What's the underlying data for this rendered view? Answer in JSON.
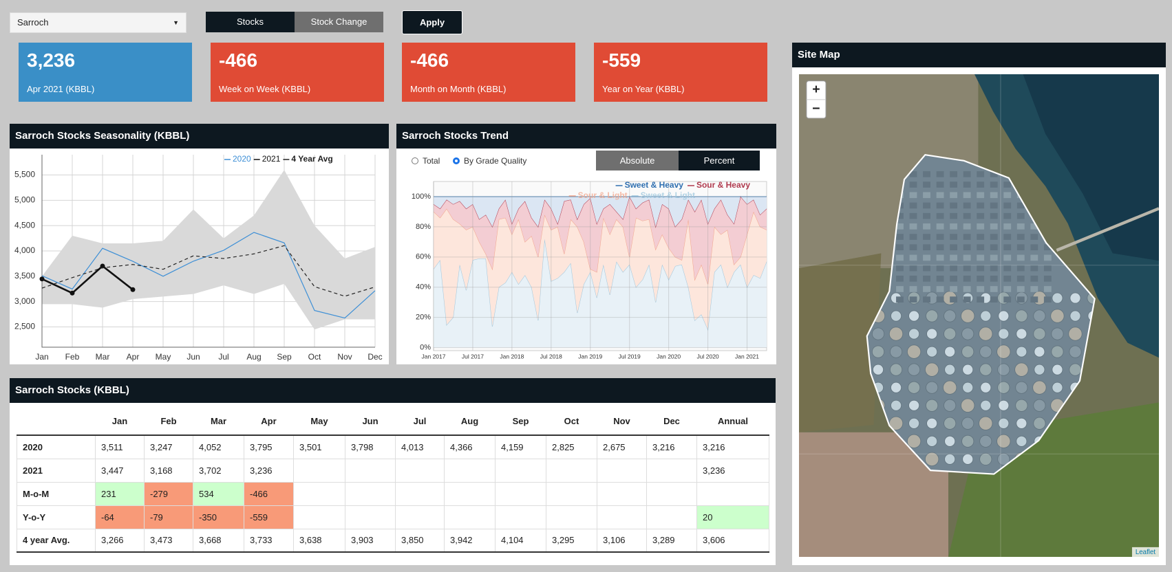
{
  "controls": {
    "site": "Sarroch",
    "modes": [
      "Stocks",
      "Stock Change"
    ],
    "apply": "Apply"
  },
  "kpis": [
    {
      "value": "3,236",
      "label": "Apr 2021 (KBBL)",
      "color": "#3a8fc7",
      "icon": "chart"
    },
    {
      "value": "-466",
      "label": "Week on Week (KBBL)",
      "color": "#e04b35",
      "icon": "arrow-down"
    },
    {
      "value": "-466",
      "label": "Month on Month (KBBL)",
      "color": "#e04b35",
      "icon": "arrow-down"
    },
    {
      "value": "-559",
      "label": "Year on Year (KBBL)",
      "color": "#e04b35",
      "icon": "arrow-down"
    }
  ],
  "chart_data": [
    {
      "type": "line",
      "title": "Sarroch Stocks Seasonality (KBBL)",
      "categories": [
        "Jan",
        "Feb",
        "Mar",
        "Apr",
        "May",
        "Jun",
        "Jul",
        "Aug",
        "Sep",
        "Oct",
        "Nov",
        "Dec"
      ],
      "series": [
        {
          "name": "2020",
          "color": "#3d8fd6",
          "width": 1.2,
          "values": [
            3511,
            3247,
            4052,
            3795,
            3501,
            3798,
            4013,
            4366,
            4159,
            2825,
            2675,
            3216
          ]
        },
        {
          "name": "2021",
          "color": "#111111",
          "width": 2.6,
          "markers": true,
          "values": [
            3447,
            3168,
            3702,
            3236,
            null,
            null,
            null,
            null,
            null,
            null,
            null,
            null
          ]
        },
        {
          "name": "4 Year Avg",
          "color": "#222222",
          "width": 1.2,
          "dash": true,
          "values": [
            3266,
            3473,
            3668,
            3733,
            3638,
            3903,
            3850,
            3942,
            4104,
            3295,
            3106,
            3289
          ]
        }
      ],
      "band": {
        "color": "#d9d9d9",
        "low": [
          2950,
          2950,
          2880,
          3050,
          3100,
          3150,
          3320,
          3150,
          3350,
          2450,
          2650,
          2650
        ],
        "high": [
          3500,
          4300,
          4150,
          4150,
          4200,
          4820,
          4250,
          4700,
          5600,
          4500,
          3850,
          4080
        ]
      },
      "ylim": [
        2100,
        5900
      ],
      "yticks": [
        {
          "value": 2500,
          "label": "2,500"
        },
        {
          "value": 3000,
          "label": "3,000"
        },
        {
          "value": 3500,
          "label": "3,500"
        },
        {
          "value": 4000,
          "label": "4,000"
        },
        {
          "value": 4500,
          "label": "4,500"
        },
        {
          "value": 5000,
          "label": "5,000"
        },
        {
          "value": 5500,
          "label": "5,500"
        }
      ],
      "grid": true,
      "legend": "top-right"
    },
    {
      "type": "area",
      "title": "Sarroch Stocks Trend",
      "stacked": true,
      "controls": {
        "modes": [
          "Total",
          "By Grade Quality"
        ],
        "selected": 1,
        "units": [
          "Absolute",
          "Percent"
        ],
        "active": 1
      },
      "categories": [
        "Jan 2017",
        null,
        null,
        null,
        null,
        null,
        "Jul 2017",
        null,
        null,
        null,
        null,
        null,
        "Jan 2018",
        null,
        null,
        null,
        null,
        null,
        "Jul 2018",
        null,
        null,
        null,
        null,
        null,
        "Jan 2019",
        null,
        null,
        null,
        null,
        null,
        "Jul 2019",
        null,
        null,
        null,
        null,
        null,
        "Jan 2020",
        null,
        null,
        null,
        null,
        null,
        "Jul 2020",
        null,
        null,
        null,
        null,
        null,
        "Jan 2021",
        null,
        null,
        null
      ],
      "series": [
        {
          "name": "Sweet & Heavy",
          "color": "#2f6fb0",
          "fill": "#dbe6f3",
          "values": [
            5,
            8,
            2,
            5,
            3,
            8,
            5,
            15,
            12,
            20,
            8,
            2,
            18,
            8,
            3,
            14,
            20,
            2,
            8,
            18,
            3,
            2,
            15,
            5,
            1,
            18,
            8,
            5,
            10,
            15,
            0,
            8,
            4,
            2,
            20,
            5,
            8,
            20,
            15,
            2,
            10,
            2,
            18,
            8,
            2,
            12,
            18,
            0,
            5,
            2,
            12,
            8
          ]
        },
        {
          "name": "Sour & Heavy",
          "color": "#b03a4e",
          "fill": "#f3cdd3",
          "values": [
            5,
            6,
            6,
            10,
            15,
            14,
            15,
            15,
            26,
            28,
            7,
            12,
            7,
            7,
            27,
            12,
            20,
            10,
            14,
            2,
            35,
            13,
            5,
            25,
            47,
            32,
            6,
            20,
            5,
            5,
            40,
            6,
            12,
            13,
            15,
            20,
            26,
            20,
            27,
            13,
            45,
            43,
            40,
            12,
            23,
            10,
            27,
            40,
            20,
            8,
            8,
            14
          ]
        },
        {
          "name": "Sour & Light",
          "color": "#f2a58a",
          "fill": "#fde6dc",
          "values": [
            38,
            28,
            77,
            65,
            27,
            40,
            22,
            11,
            3,
            38,
            45,
            43,
            25,
            43,
            22,
            34,
            42,
            16,
            34,
            34,
            12,
            29,
            57,
            28,
            2,
            17,
            31,
            40,
            28,
            30,
            5,
            46,
            39,
            30,
            35,
            20,
            21,
            6,
            3,
            45,
            27,
            33,
            30,
            30,
            20,
            38,
            5,
            5,
            35,
            42,
            34,
            21
          ]
        },
        {
          "name": "Sweet & Light",
          "color": "#9cc6dd",
          "fill": "#e8f1f7",
          "values": [
            52,
            58,
            15,
            20,
            55,
            38,
            58,
            59,
            59,
            14,
            40,
            43,
            50,
            42,
            48,
            40,
            18,
            72,
            44,
            46,
            50,
            56,
            23,
            42,
            50,
            33,
            55,
            35,
            57,
            50,
            55,
            40,
            45,
            55,
            30,
            55,
            45,
            54,
            55,
            40,
            18,
            22,
            12,
            50,
            55,
            40,
            50,
            55,
            40,
            48,
            46,
            57
          ]
        }
      ],
      "ylim": [
        -2,
        110
      ],
      "yticks": [
        {
          "value": 0,
          "label": "0%"
        },
        {
          "value": 20,
          "label": "20%"
        },
        {
          "value": 40,
          "label": "40%"
        },
        {
          "value": 60,
          "label": "60%"
        },
        {
          "value": 80,
          "label": "80%"
        },
        {
          "value": 100,
          "label": "100%"
        }
      ],
      "grid": true,
      "legend": "top-right"
    }
  ],
  "table": {
    "title": "Sarroch Stocks (KBBL)",
    "header": [
      "Jan",
      "Feb",
      "Mar",
      "Apr",
      "May",
      "Jun",
      "Jul",
      "Aug",
      "Sep",
      "Oct",
      "Nov",
      "Dec",
      "Annual"
    ],
    "rows": [
      {
        "label": "2020",
        "cells": [
          "3,511",
          "3,247",
          "4,052",
          "3,795",
          "3,501",
          "3,798",
          "4,013",
          "4,366",
          "4,159",
          "2,825",
          "2,675",
          "3,216",
          "3,216"
        ]
      },
      {
        "label": "2021",
        "cells": [
          "3,447",
          "3,168",
          "3,702",
          "3,236",
          null,
          null,
          null,
          null,
          null,
          null,
          null,
          null,
          "3,236"
        ]
      },
      {
        "label": "M-o-M",
        "colored": true,
        "cells": [
          "231",
          "-279",
          "534",
          "-466",
          null,
          null,
          null,
          null,
          null,
          null,
          null,
          null,
          null
        ]
      },
      {
        "label": "Y-o-Y",
        "colored": true,
        "cells": [
          "-64",
          "-79",
          "-350",
          "-559",
          null,
          null,
          null,
          null,
          null,
          null,
          null,
          null,
          "20"
        ]
      },
      {
        "label": "4 year Avg.",
        "cells": [
          "3,266",
          "3,473",
          "3,668",
          "3,733",
          "3,638",
          "3,903",
          "3,850",
          "3,942",
          "4,104",
          "3,295",
          "3,106",
          "3,289",
          "3,606"
        ]
      }
    ]
  },
  "map": {
    "title": "Site Map",
    "zoom_in": "+",
    "zoom_out": "−",
    "attribution": "Leaflet"
  }
}
